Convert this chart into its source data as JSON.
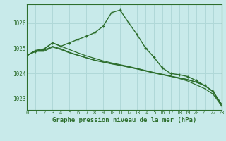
{
  "background_color": "#c8eaea",
  "grid_color": "#b0d8d8",
  "line_color": "#2d6e2d",
  "title": "Graphe pression niveau de la mer (hPa)",
  "hours": [
    0,
    1,
    2,
    3,
    4,
    5,
    6,
    7,
    8,
    9,
    10,
    11,
    12,
    13,
    14,
    15,
    16,
    17,
    18,
    19,
    20,
    21,
    22,
    23
  ],
  "yticks": [
    1023,
    1024,
    1025,
    1026
  ],
  "ylim": [
    1022.55,
    1026.75
  ],
  "xlim": [
    0,
    23
  ],
  "series_flat1": [
    1024.72,
    1024.88,
    1024.88,
    1025.05,
    1024.95,
    1024.82,
    1024.72,
    1024.62,
    1024.52,
    1024.45,
    1024.38,
    1024.32,
    1024.25,
    1024.18,
    1024.1,
    1024.02,
    1023.95,
    1023.88,
    1023.82,
    1023.75,
    1023.65,
    1023.52,
    1023.28,
    1022.78
  ],
  "series_flat2": [
    1024.72,
    1024.9,
    1024.92,
    1025.08,
    1024.98,
    1024.84,
    1024.73,
    1024.63,
    1024.53,
    1024.46,
    1024.39,
    1024.33,
    1024.26,
    1024.19,
    1024.11,
    1024.03,
    1023.96,
    1023.89,
    1023.83,
    1023.76,
    1023.66,
    1023.53,
    1023.29,
    1022.79
  ],
  "series_flat3": [
    1024.72,
    1024.92,
    1024.98,
    1025.22,
    1025.08,
    1024.95,
    1024.82,
    1024.7,
    1024.6,
    1024.5,
    1024.42,
    1024.35,
    1024.28,
    1024.2,
    1024.12,
    1024.04,
    1023.97,
    1023.9,
    1023.8,
    1023.7,
    1023.55,
    1023.4,
    1023.18,
    1022.72
  ],
  "series_peak": [
    1024.72,
    1024.88,
    1024.96,
    1025.22,
    1025.08,
    1025.22,
    1025.35,
    1025.48,
    1025.62,
    1025.88,
    1026.42,
    1026.52,
    1026.02,
    1025.55,
    1025.02,
    1024.65,
    1024.22,
    1024.0,
    1023.95,
    1023.88,
    1023.72,
    1023.52,
    1023.28,
    1022.72
  ]
}
